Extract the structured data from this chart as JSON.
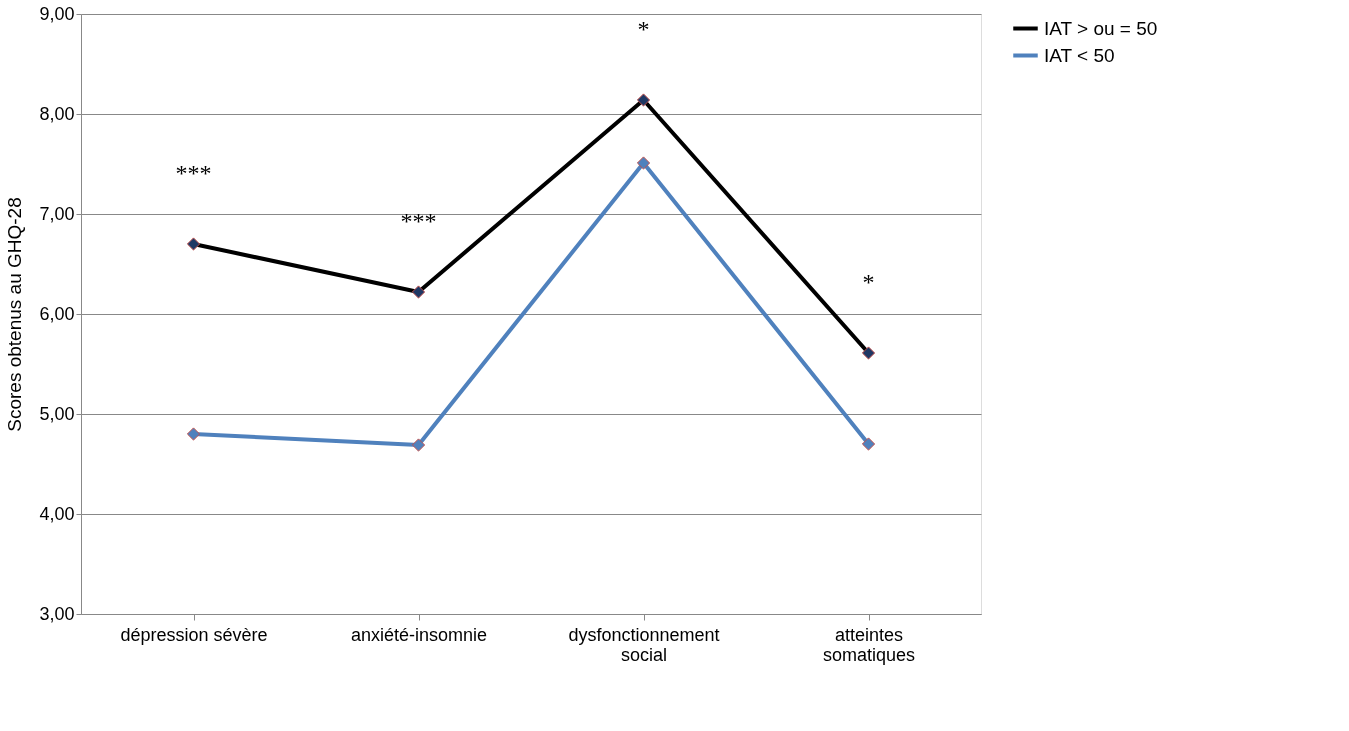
{
  "chart_data": {
    "type": "line",
    "ylabel": "Scores obtenus au GHQ-28",
    "categories": [
      "dépression sévère",
      "anxiété-insomnie",
      "dysfonctionnement social",
      "atteintes somatiques"
    ],
    "series": [
      {
        "name": "IAT > ou = 50",
        "color": "#000000",
        "values": [
          6.7,
          6.22,
          8.14,
          5.61
        ]
      },
      {
        "name": "IAT < 50",
        "color": "#4f81bd",
        "values": [
          4.8,
          4.69,
          7.51,
          4.7
        ]
      }
    ],
    "ylim": [
      3,
      9
    ],
    "yticks": [
      {
        "value": 3,
        "label": "3,00"
      },
      {
        "value": 4,
        "label": "4,00"
      },
      {
        "value": 5,
        "label": "5,00"
      },
      {
        "value": 6,
        "label": "6,00"
      },
      {
        "value": 7,
        "label": "7,00"
      },
      {
        "value": 8,
        "label": "8,00"
      },
      {
        "value": 9,
        "label": "9,00"
      }
    ],
    "annotations": [
      "***",
      "***",
      "*",
      "*"
    ],
    "grid": "y",
    "legend": "right",
    "marker": "diamond",
    "line_style": "solid"
  }
}
